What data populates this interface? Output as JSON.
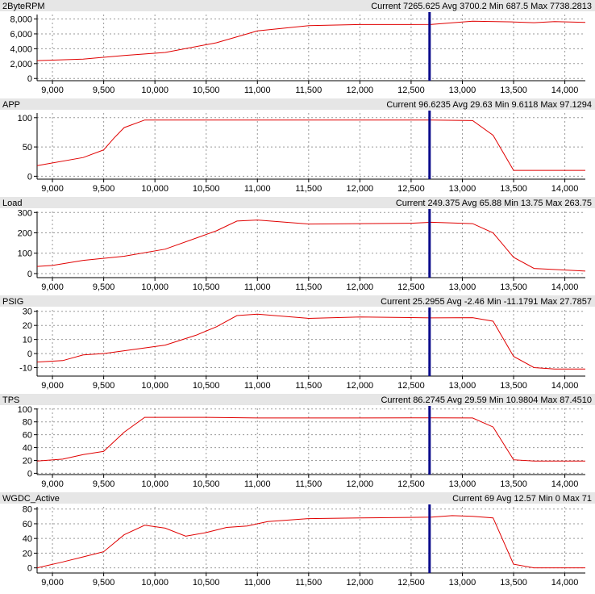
{
  "colors": {
    "panel_header": "#e6e6e6",
    "plot_bg": "#ffffff",
    "grid": "#9a9a9a",
    "series": "#e00000",
    "cursor": "#0a0a8c",
    "frame": "#808080"
  },
  "cursor_x": 12680,
  "chart_data": [
    {
      "type": "line",
      "title": "2ByteRPM",
      "stats": "Current 7265.625 Avg 3700.2 Min 687.5 Max 7738.2813",
      "xlim": [
        8850,
        14200
      ],
      "ylim": [
        -300,
        8600
      ],
      "x_ticks": [
        "9,000",
        "9,500",
        "10,000",
        "10,500",
        "11,000",
        "11,500",
        "12,000",
        "12,500",
        "13,000",
        "13,500",
        "14,000"
      ],
      "y_ticks": [
        "8,000",
        "6,000",
        "4,000",
        "2,000",
        "0"
      ],
      "x": [
        8850,
        9300,
        9700,
        10100,
        10600,
        11000,
        11500,
        12000,
        12700,
        13100,
        13500,
        13700,
        13900,
        14200
      ],
      "y": [
        2400,
        2600,
        3100,
        3500,
        4800,
        6400,
        7100,
        7250,
        7260,
        7700,
        7600,
        7500,
        7650,
        7550
      ]
    },
    {
      "type": "line",
      "title": "APP",
      "stats": "Current 96.6235 Avg 29.63 Min 9.6118 Max 97.1294",
      "xlim": [
        8850,
        14200
      ],
      "ylim": [
        -5,
        108
      ],
      "x_ticks": [
        "9,000",
        "9,500",
        "10,000",
        "10,500",
        "11,000",
        "11,500",
        "12,000",
        "12,500",
        "13,000",
        "13,500",
        "14,000"
      ],
      "y_ticks": [
        "100",
        "50",
        "0"
      ],
      "x": [
        8850,
        9300,
        9500,
        9600,
        9700,
        9900,
        10500,
        11000,
        12000,
        12700,
        13100,
        13300,
        13500,
        14200
      ],
      "y": [
        18,
        32,
        45,
        65,
        83,
        96,
        96,
        96,
        96,
        96,
        95,
        70,
        10,
        10
      ]
    },
    {
      "type": "line",
      "title": "Load",
      "stats": "Current 249.375 Avg 65.88 Min 13.75 Max 263.75",
      "xlim": [
        8850,
        14200
      ],
      "ylim": [
        -20,
        305
      ],
      "x_ticks": [
        "9,000",
        "9,500",
        "10,000",
        "10,500",
        "11,000",
        "11,500",
        "12,000",
        "12,500",
        "13,000",
        "13,500",
        "14,000"
      ],
      "y_ticks": [
        "300",
        "200",
        "100",
        "0"
      ],
      "x": [
        8850,
        9000,
        9300,
        9700,
        10100,
        10600,
        10800,
        11000,
        11500,
        12000,
        12500,
        12700,
        13100,
        13300,
        13500,
        13700,
        14200
      ],
      "y": [
        35,
        40,
        65,
        85,
        120,
        210,
        258,
        263,
        243,
        245,
        247,
        252,
        245,
        200,
        80,
        25,
        12
      ]
    },
    {
      "type": "line",
      "title": "PSIG",
      "stats": "Current 25.2955 Avg -2.46 Min -11.1791 Max 27.7857",
      "xlim": [
        8850,
        14200
      ],
      "ylim": [
        -16,
        31
      ],
      "x_ticks": [
        "9,000",
        "9,500",
        "10,000",
        "10,500",
        "11,000",
        "11,500",
        "12,000",
        "12,500",
        "13,000",
        "13,500",
        "14,000"
      ],
      "y_ticks": [
        "30",
        "20",
        "10",
        "0",
        "-10"
      ],
      "x": [
        8850,
        9100,
        9300,
        9500,
        9700,
        10100,
        10400,
        10600,
        10800,
        11000,
        11500,
        12000,
        12700,
        13100,
        13300,
        13500,
        13700,
        13900,
        14200
      ],
      "y": [
        -6,
        -5,
        -1,
        0,
        2,
        6,
        13,
        19,
        27,
        28,
        25,
        26,
        25.3,
        25.5,
        23,
        -2,
        -10,
        -11,
        -11
      ]
    },
    {
      "type": "line",
      "title": "TPS",
      "stats": "Current 86.2745 Avg 29.59 Min 10.9804 Max 87.4510",
      "xlim": [
        8850,
        14200
      ],
      "ylim": [
        -2,
        101
      ],
      "x_ticks": [
        "9,000",
        "9,500",
        "10,000",
        "10,500",
        "11,000",
        "11,500",
        "12,000",
        "12,500",
        "13,000",
        "13,500",
        "14,000"
      ],
      "y_ticks": [
        "100",
        "80",
        "60",
        "40",
        "20",
        "0"
      ],
      "x": [
        8850,
        9100,
        9300,
        9500,
        9700,
        9900,
        10500,
        11000,
        12000,
        12700,
        13100,
        13300,
        13500,
        13700,
        14200
      ],
      "y": [
        19,
        22,
        29,
        34,
        64,
        87,
        87,
        86,
        86,
        86.3,
        86,
        72,
        21,
        19,
        19
      ]
    },
    {
      "type": "line",
      "title": "WGDC_Active",
      "stats": "Current 69 Avg 12.57 Min 0 Max 71",
      "xlim": [
        8850,
        14200
      ],
      "ylim": [
        -7,
        83
      ],
      "x_ticks": [
        "9,000",
        "9,500",
        "10,000",
        "10,500",
        "11,000",
        "11,500",
        "12,000",
        "12,500",
        "13,000",
        "13,500",
        "14,000"
      ],
      "y_ticks": [
        "80",
        "60",
        "40",
        "20",
        "0"
      ],
      "x": [
        8850,
        9100,
        9300,
        9500,
        9700,
        9900,
        10100,
        10300,
        10500,
        10700,
        10900,
        11100,
        11500,
        12000,
        12700,
        12900,
        13100,
        13300,
        13500,
        13700,
        14200
      ],
      "y": [
        0,
        8,
        15,
        22,
        45,
        58,
        54,
        43,
        48,
        55,
        57,
        63,
        67,
        68,
        69,
        71,
        70,
        68,
        5,
        0,
        0
      ]
    }
  ]
}
